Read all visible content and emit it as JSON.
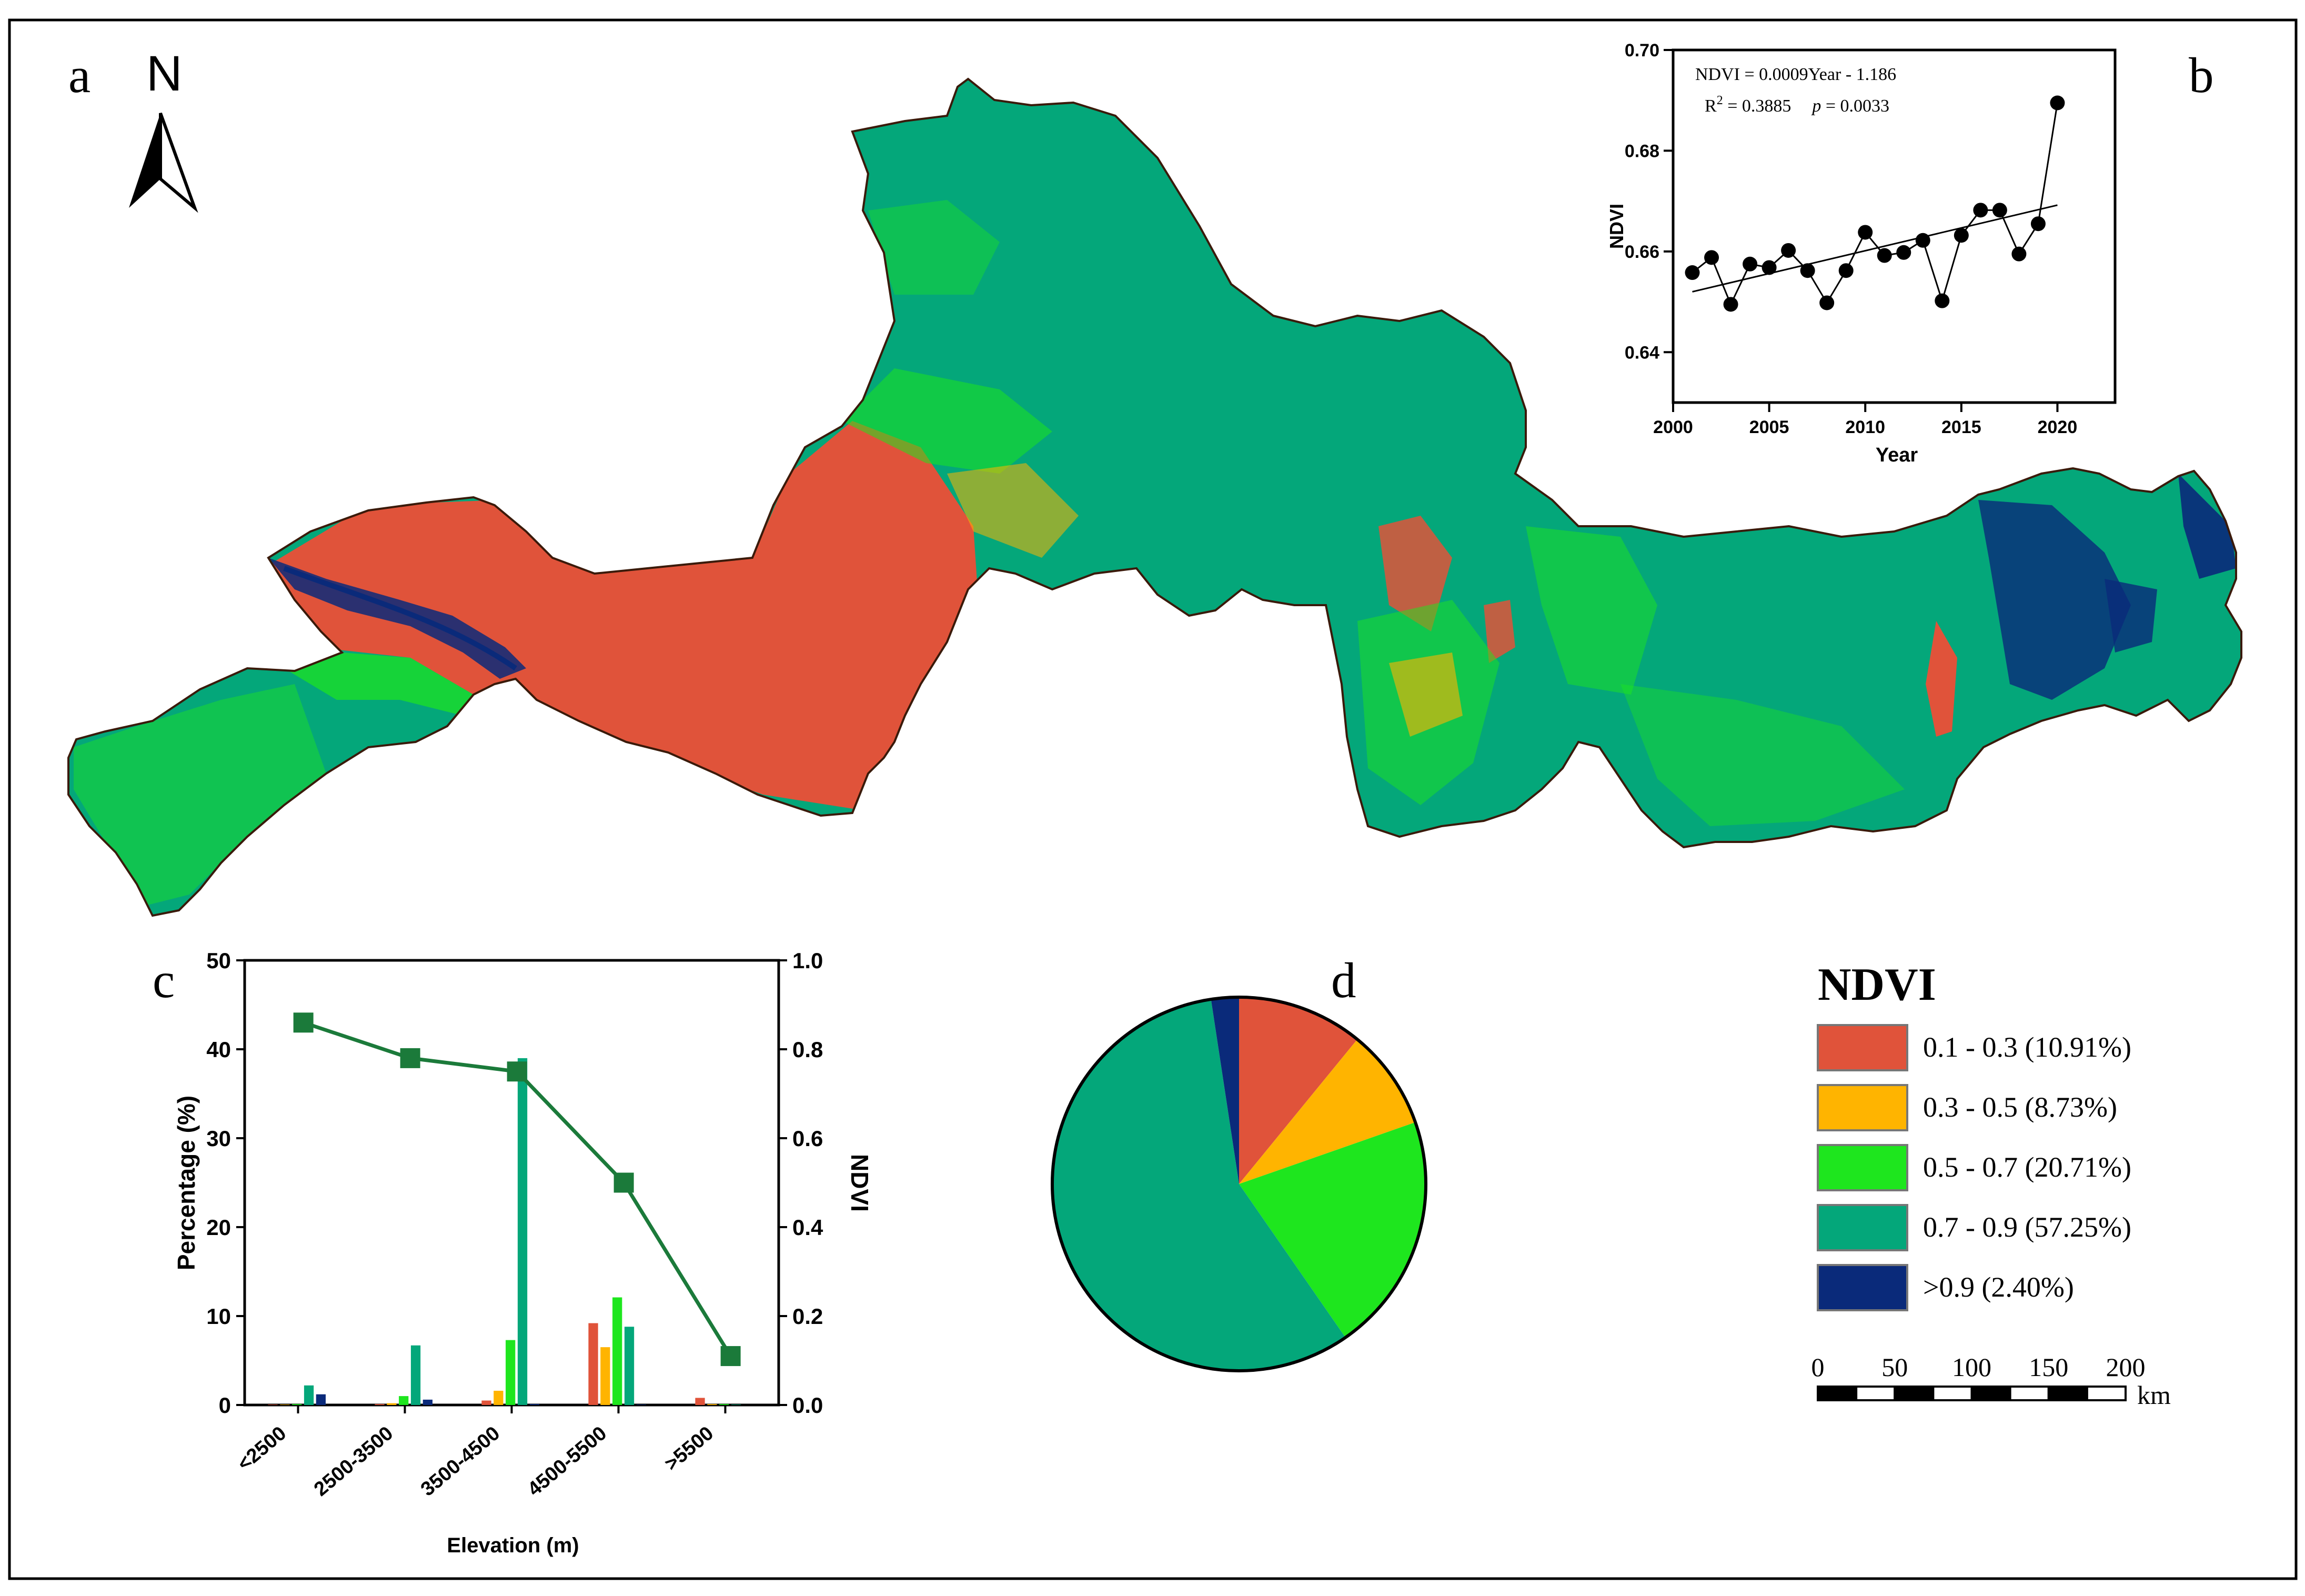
{
  "panels": {
    "a": "a",
    "b": "b",
    "c": "c",
    "d": "d"
  },
  "north_arrow": {
    "label": "N"
  },
  "colors": {
    "red": "#E0533A",
    "orange": "#FFB400",
    "lime": "#1EE61E",
    "teal": "#04A77A",
    "navy": "#0A2A7A",
    "grid": "#000000"
  },
  "legend": {
    "title": "NDVI",
    "items": [
      {
        "label": "0.1 - 0.3 (10.91%)",
        "color": "#E0533A"
      },
      {
        "label": "0.3 - 0.5 (8.73%)",
        "color": "#FFB400"
      },
      {
        "label": "0.5 - 0.7 (20.71%)",
        "color": "#1EE61E"
      },
      {
        "label": "0.7 - 0.9 (57.25%)",
        "color": "#04A77A"
      },
      {
        "label": ">0.9 (2.40%)",
        "color": "#0A2A7A"
      }
    ]
  },
  "scale_bar": {
    "ticks": [
      "0",
      "50",
      "100",
      "150",
      "200"
    ],
    "unit": "km"
  },
  "chart_data": [
    {
      "id": "b",
      "type": "scatter",
      "title": "",
      "xlabel": "Year",
      "ylabel": "NDVI",
      "xlim": [
        2000,
        2023
      ],
      "ylim": [
        0.63,
        0.7
      ],
      "xticks": [
        2000,
        2005,
        2010,
        2015,
        2020
      ],
      "yticks": [
        0.64,
        0.66,
        0.68,
        0.7
      ],
      "ytick_labels": [
        "0.64",
        "0.66",
        "0.68",
        "0.70"
      ],
      "x": [
        2001,
        2002,
        2003,
        2004,
        2005,
        2006,
        2007,
        2008,
        2009,
        2010,
        2011,
        2012,
        2013,
        2014,
        2015,
        2016,
        2017,
        2018,
        2019,
        2020
      ],
      "y": [
        0.6558,
        0.6588,
        0.6495,
        0.6575,
        0.6568,
        0.6602,
        0.6562,
        0.6498,
        0.6562,
        0.6638,
        0.6592,
        0.6598,
        0.6622,
        0.6502,
        0.6632,
        0.6682,
        0.6682,
        0.6595,
        0.6655,
        0.6895
      ],
      "trend": {
        "x": [
          2001,
          2020
        ],
        "y": [
          0.652,
          0.6692
        ]
      },
      "annotations": {
        "equation": "NDVI = 0.0009Year - 1.186",
        "r2_label": "R",
        "r2_sup": "2",
        "r2_value": " = 0.3885",
        "p_label": "p",
        "p_value": " = 0.0033"
      }
    },
    {
      "id": "c",
      "type": "bar",
      "title": "",
      "xlabel": "Elevation (m)",
      "ylabel": "Percentage (%)",
      "y2label": "NDVI",
      "categories": [
        "<2500",
        "2500-3500",
        "3500-4500",
        "4500-5500",
        ">5500"
      ],
      "ylim": [
        0,
        50
      ],
      "y2lim": [
        0,
        1.0
      ],
      "yticks": [
        0,
        10,
        20,
        30,
        40,
        50
      ],
      "y2ticks": [
        "0.0",
        "0.2",
        "0.4",
        "0.6",
        "0.8",
        "1.0"
      ],
      "series": [
        {
          "name": "0.1 - 0.3",
          "color": "#E0533A",
          "values": [
            0.05,
            0.1,
            0.5,
            9.2,
            0.8
          ]
        },
        {
          "name": "0.3 - 0.5",
          "color": "#FFB400",
          "values": [
            0.05,
            0.2,
            1.6,
            6.5,
            0.1
          ]
        },
        {
          "name": "0.5 - 0.7",
          "color": "#1EE61E",
          "values": [
            0.1,
            1.0,
            7.3,
            12.1,
            0.1
          ]
        },
        {
          "name": "0.7 - 0.9",
          "color": "#04A77A",
          "values": [
            2.2,
            6.7,
            39.0,
            8.8,
            0.05
          ]
        },
        {
          "name": ">0.9",
          "color": "#0A2A7A",
          "values": [
            1.2,
            0.6,
            0.1,
            0.05,
            0.0
          ]
        }
      ],
      "line": {
        "name": "NDVI",
        "color": "#1B7A3A",
        "x": [
          0.55,
          1.55,
          2.55,
          3.55,
          4.55
        ],
        "values": [
          0.86,
          0.78,
          0.75,
          0.5,
          0.11
        ]
      }
    },
    {
      "id": "d",
      "type": "pie",
      "title": "",
      "labels": [
        "0.1 - 0.3",
        "0.3 - 0.5",
        "0.5 - 0.7",
        "0.7 - 0.9",
        ">0.9"
      ],
      "values": [
        10.91,
        8.73,
        20.71,
        57.25,
        2.4
      ],
      "colors": [
        "#E0533A",
        "#FFB400",
        "#1EE61E",
        "#04A77A",
        "#0A2A7A"
      ]
    }
  ]
}
